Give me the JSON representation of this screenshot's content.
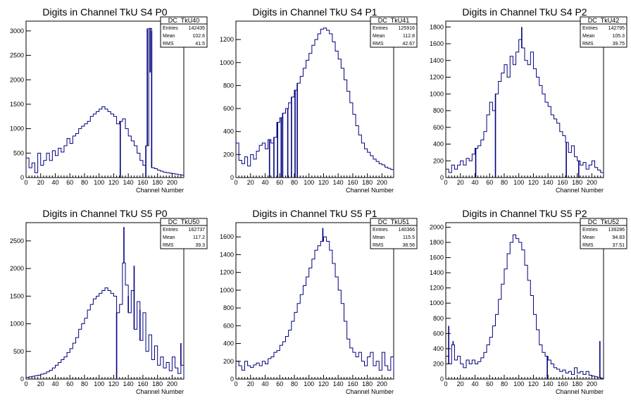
{
  "colors": {
    "histogram": "#00007f",
    "frame": "#000000",
    "background": "#ffffff"
  },
  "chart_data": [
    {
      "type": "histogram",
      "title": "Digits in Channel TkU S4 P0",
      "xlabel": "Channel Number",
      "ylabel": "",
      "xlim": [
        0,
        216
      ],
      "ylim": [
        0,
        3200
      ],
      "xticks": [
        0,
        20,
        40,
        60,
        80,
        100,
        120,
        140,
        160,
        180,
        200
      ],
      "yticks": [
        0,
        500,
        1000,
        1500,
        2000,
        2500,
        3000
      ],
      "stats": {
        "name": "DC_TkU40",
        "rows": [
          {
            "label": "Entries",
            "value": "142435"
          },
          {
            "label": "Mean",
            "value": "102.6"
          },
          {
            "label": "RMS",
            "value": "41.5"
          }
        ]
      },
      "x": [
        0,
        4,
        8,
        12,
        16,
        20,
        24,
        28,
        32,
        36,
        40,
        44,
        48,
        52,
        56,
        60,
        64,
        68,
        72,
        76,
        80,
        84,
        88,
        92,
        96,
        100,
        104,
        108,
        112,
        116,
        120,
        124,
        128,
        132,
        136,
        140,
        144,
        148,
        152,
        156,
        160,
        164,
        168,
        172,
        176,
        180,
        184,
        188,
        192,
        196,
        200,
        204,
        208,
        212,
        216
      ],
      "values": [
        400,
        200,
        300,
        100,
        500,
        250,
        350,
        500,
        350,
        550,
        450,
        600,
        520,
        650,
        800,
        700,
        850,
        900,
        1000,
        1050,
        1100,
        1150,
        1250,
        1300,
        1350,
        1400,
        1450,
        1400,
        1350,
        1300,
        1250,
        1100,
        1150,
        1200,
        1000,
        850,
        750,
        650,
        500,
        350,
        250,
        650,
        3050,
        200,
        180,
        150,
        130,
        110,
        100,
        90,
        80,
        70,
        60,
        50,
        30
      ],
      "spikes": [
        {
          "x": 129,
          "y": 0
        },
        {
          "x": 164,
          "y": 0
        },
        {
          "x": 166,
          "y": 3050
        },
        {
          "x": 170,
          "y": 2150
        },
        {
          "x": 172,
          "y": 3000
        }
      ]
    },
    {
      "type": "histogram",
      "title": "Digits in Channel TkU S4 P1",
      "xlabel": "Channel Number",
      "ylabel": "",
      "xlim": [
        0,
        216
      ],
      "ylim": [
        0,
        1360
      ],
      "xticks": [
        0,
        20,
        40,
        60,
        80,
        100,
        120,
        140,
        160,
        180,
        200
      ],
      "yticks": [
        0,
        200,
        400,
        600,
        800,
        1000,
        1200
      ],
      "stats": {
        "name": "DC_TkU41",
        "rows": [
          {
            "label": "Entries",
            "value": "125916"
          },
          {
            "label": "Mean",
            "value": "112.8"
          },
          {
            "label": "RMS",
            "value": "42.67"
          }
        ]
      },
      "x": [
        0,
        4,
        8,
        12,
        16,
        20,
        24,
        28,
        32,
        36,
        40,
        44,
        48,
        52,
        56,
        60,
        64,
        68,
        72,
        76,
        80,
        84,
        88,
        92,
        96,
        100,
        104,
        108,
        112,
        116,
        120,
        124,
        128,
        132,
        136,
        140,
        144,
        148,
        152,
        156,
        160,
        164,
        168,
        172,
        176,
        180,
        184,
        188,
        192,
        196,
        200,
        204,
        208,
        212,
        216
      ],
      "values": [
        300,
        150,
        120,
        180,
        100,
        200,
        160,
        230,
        280,
        300,
        250,
        330,
        300,
        350,
        480,
        520,
        560,
        600,
        650,
        700,
        760,
        820,
        880,
        950,
        1020,
        1080,
        1150,
        1200,
        1250,
        1290,
        1300,
        1280,
        1250,
        1180,
        1100,
        1030,
        950,
        850,
        750,
        650,
        550,
        450,
        370,
        300,
        250,
        220,
        190,
        160,
        140,
        120,
        110,
        90,
        80,
        70,
        60
      ],
      "spikes": [
        {
          "x": 46,
          "y": 0
        },
        {
          "x": 52,
          "y": 0
        },
        {
          "x": 57,
          "y": 0
        },
        {
          "x": 62,
          "y": 0
        },
        {
          "x": 64,
          "y": 0
        },
        {
          "x": 71,
          "y": 0
        },
        {
          "x": 76,
          "y": 0
        },
        {
          "x": 81,
          "y": 0
        },
        {
          "x": 84,
          "y": 0
        }
      ]
    },
    {
      "type": "histogram",
      "title": "Digits in Channel TkU S4 P2",
      "xlabel": "Channel Number",
      "ylabel": "",
      "xlim": [
        0,
        216
      ],
      "ylim": [
        0,
        1870
      ],
      "xticks": [
        0,
        20,
        40,
        60,
        80,
        100,
        120,
        140,
        160,
        180,
        200
      ],
      "yticks": [
        0,
        200,
        400,
        600,
        800,
        1000,
        1200,
        1400,
        1600,
        1800
      ],
      "stats": {
        "name": "DC_TkU42",
        "rows": [
          {
            "label": "Entries",
            "value": "142795"
          },
          {
            "label": "Mean",
            "value": "105.3"
          },
          {
            "label": "RMS",
            "value": "39.75"
          }
        ]
      },
      "x": [
        0,
        4,
        8,
        12,
        16,
        20,
        24,
        28,
        32,
        36,
        40,
        44,
        48,
        52,
        56,
        60,
        64,
        68,
        72,
        76,
        80,
        84,
        88,
        92,
        96,
        100,
        104,
        108,
        112,
        116,
        120,
        124,
        128,
        132,
        136,
        140,
        144,
        148,
        152,
        156,
        160,
        164,
        168,
        172,
        176,
        180,
        184,
        188,
        192,
        196,
        200,
        204,
        208,
        212,
        216
      ],
      "values": [
        100,
        60,
        150,
        100,
        150,
        200,
        150,
        230,
        200,
        280,
        350,
        380,
        450,
        550,
        750,
        900,
        800,
        1000,
        1150,
        1250,
        1350,
        1200,
        1450,
        1350,
        1500,
        1650,
        1550,
        1400,
        1350,
        1500,
        1300,
        1200,
        1100,
        1000,
        900,
        850,
        750,
        700,
        650,
        550,
        500,
        420,
        300,
        380,
        250,
        200,
        150,
        180,
        100,
        150,
        200,
        120,
        90,
        60,
        30
      ],
      "spikes": [
        {
          "x": 41,
          "y": 0
        },
        {
          "x": 68,
          "y": 0
        },
        {
          "x": 104,
          "y": 1800
        },
        {
          "x": 165,
          "y": 0
        },
        {
          "x": 182,
          "y": 0
        }
      ]
    },
    {
      "type": "histogram",
      "title": "Digits in Channel TkU S5 P0",
      "xlabel": "Channel Number",
      "ylabel": "",
      "xlim": [
        0,
        216
      ],
      "ylim": [
        0,
        2830
      ],
      "xticks": [
        0,
        20,
        40,
        60,
        80,
        100,
        120,
        140,
        160,
        180,
        200
      ],
      "yticks": [
        0,
        500,
        1000,
        1500,
        2000,
        2500
      ],
      "stats": {
        "name": "DC_TkU50",
        "rows": [
          {
            "label": "Entries",
            "value": "162737"
          },
          {
            "label": "Mean",
            "value": "117.2"
          },
          {
            "label": "RMS",
            "value": "39.3"
          }
        ]
      },
      "x": [
        0,
        4,
        8,
        12,
        16,
        20,
        24,
        28,
        32,
        36,
        40,
        44,
        48,
        52,
        56,
        60,
        64,
        68,
        72,
        76,
        80,
        84,
        88,
        92,
        96,
        100,
        104,
        108,
        112,
        116,
        120,
        124,
        128,
        132,
        136,
        140,
        144,
        148,
        152,
        156,
        160,
        164,
        168,
        172,
        176,
        180,
        184,
        188,
        192,
        196,
        200,
        204,
        208,
        212,
        216
      ],
      "values": [
        30,
        40,
        50,
        60,
        70,
        90,
        100,
        130,
        160,
        200,
        250,
        300,
        350,
        400,
        480,
        550,
        650,
        750,
        900,
        1000,
        1100,
        1250,
        1350,
        1450,
        1500,
        1550,
        1600,
        1650,
        1600,
        1550,
        1500,
        1200,
        1350,
        2100,
        1700,
        1200,
        1600,
        900,
        1400,
        700,
        1200,
        500,
        800,
        350,
        600,
        250,
        400,
        200,
        300,
        150,
        400,
        200,
        100,
        250,
        50
      ],
      "spikes": [
        {
          "x": 124,
          "y": 0
        },
        {
          "x": 134,
          "y": 2750
        },
        {
          "x": 140,
          "y": 1500
        },
        {
          "x": 148,
          "y": 2050
        },
        {
          "x": 156,
          "y": 1250
        },
        {
          "x": 212,
          "y": 650
        }
      ]
    },
    {
      "type": "histogram",
      "title": "Digits in Channel TkU S5 P1",
      "xlabel": "Channel Number",
      "ylabel": "",
      "xlim": [
        0,
        216
      ],
      "ylim": [
        0,
        1760
      ],
      "xticks": [
        0,
        20,
        40,
        60,
        80,
        100,
        120,
        140,
        160,
        180,
        200
      ],
      "yticks": [
        0,
        200,
        400,
        600,
        800,
        1000,
        1200,
        1400,
        1600
      ],
      "stats": {
        "name": "DC_TkU51",
        "rows": [
          {
            "label": "Entries",
            "value": "140366"
          },
          {
            "label": "Mean",
            "value": "115.5"
          },
          {
            "label": "RMS",
            "value": "38.56"
          }
        ]
      },
      "x": [
        0,
        4,
        8,
        12,
        16,
        20,
        24,
        28,
        32,
        36,
        40,
        44,
        48,
        52,
        56,
        60,
        64,
        68,
        72,
        76,
        80,
        84,
        88,
        92,
        96,
        100,
        104,
        108,
        112,
        116,
        120,
        124,
        128,
        132,
        136,
        140,
        144,
        148,
        152,
        156,
        160,
        164,
        168,
        172,
        176,
        180,
        184,
        188,
        192,
        196,
        200,
        204,
        208,
        212,
        216
      ],
      "values": [
        200,
        150,
        100,
        200,
        150,
        130,
        160,
        180,
        150,
        200,
        170,
        230,
        250,
        300,
        320,
        380,
        420,
        480,
        550,
        650,
        750,
        850,
        950,
        1050,
        1150,
        1250,
        1350,
        1450,
        1500,
        1550,
        1600,
        1550,
        1450,
        1300,
        1150,
        1000,
        850,
        650,
        450,
        350,
        300,
        250,
        300,
        200,
        150,
        250,
        300,
        150,
        200,
        100,
        300,
        150,
        100,
        250,
        80
      ],
      "spikes": [
        {
          "x": 119,
          "y": 1700
        }
      ]
    },
    {
      "type": "histogram",
      "title": "Digits in Channel TkU S5 P2",
      "xlabel": "Channel Number",
      "ylabel": "",
      "xlim": [
        0,
        216
      ],
      "ylim": [
        0,
        2060
      ],
      "xticks": [
        0,
        20,
        40,
        60,
        80,
        100,
        120,
        140,
        160,
        180,
        200
      ],
      "yticks": [
        0,
        200,
        400,
        600,
        800,
        1000,
        1200,
        1400,
        1600,
        1800,
        2000
      ],
      "stats": {
        "name": "DC_TkU52",
        "rows": [
          {
            "label": "Entries",
            "value": "139286"
          },
          {
            "label": "Mean",
            "value": "94.83"
          },
          {
            "label": "RMS",
            "value": "37.51"
          }
        ]
      },
      "x": [
        0,
        4,
        8,
        12,
        16,
        20,
        24,
        28,
        32,
        36,
        40,
        44,
        48,
        52,
        56,
        60,
        64,
        68,
        72,
        76,
        80,
        84,
        88,
        92,
        96,
        100,
        104,
        108,
        112,
        116,
        120,
        124,
        128,
        132,
        136,
        140,
        144,
        148,
        152,
        156,
        160,
        164,
        168,
        172,
        176,
        180,
        184,
        188,
        192,
        196,
        200,
        204,
        208,
        212,
        216
      ],
      "values": [
        300,
        200,
        450,
        250,
        300,
        200,
        150,
        250,
        200,
        250,
        200,
        230,
        280,
        350,
        450,
        550,
        700,
        850,
        1050,
        1250,
        1450,
        1650,
        1800,
        1900,
        1850,
        1800,
        1700,
        1500,
        1300,
        1100,
        850,
        650,
        450,
        350,
        300,
        250,
        200,
        150,
        130,
        100,
        120,
        80,
        100,
        60,
        150,
        80,
        100,
        60,
        100,
        50,
        40,
        30,
        20,
        10,
        0
      ],
      "spikes": [
        {
          "x": 4,
          "y": 700
        },
        {
          "x": 10,
          "y": 500
        },
        {
          "x": 139,
          "y": 0
        },
        {
          "x": 211,
          "y": 500
        }
      ]
    }
  ]
}
